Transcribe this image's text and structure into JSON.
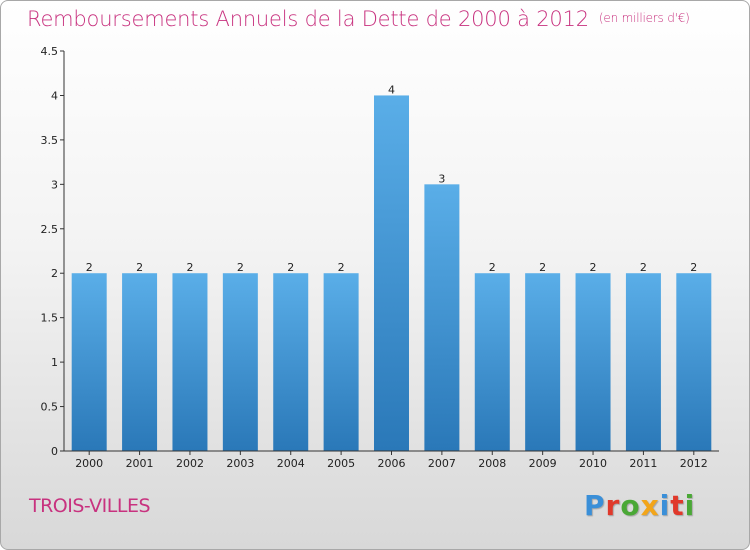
{
  "title": "Remboursements Annuels de la Dette de 2000 à 2012",
  "unit": "(en milliers d'€)",
  "commune": "TROIS-VILLES",
  "brand": {
    "text": "Proxiti",
    "letter_colors": [
      "#3a8fd8",
      "#e0392b",
      "#4aa836",
      "#f2a51a",
      "#3a8fd8",
      "#e0392b",
      "#4aa836"
    ]
  },
  "colors": {
    "bar_top": "#5aaee8",
    "bar_bottom": "#2a78b8",
    "axis": "#333333",
    "title": "#c8327f"
  },
  "chart_data": {
    "type": "bar",
    "title": "Remboursements Annuels de la Dette de 2000 à 2012",
    "subtitle": "(en milliers d'€)",
    "categories": [
      "2000",
      "2001",
      "2002",
      "2003",
      "2004",
      "2005",
      "2006",
      "2007",
      "2008",
      "2009",
      "2010",
      "2011",
      "2012"
    ],
    "values": [
      2,
      2,
      2,
      2,
      2,
      2,
      4,
      3,
      2,
      2,
      2,
      2,
      2
    ],
    "data_labels": [
      "2",
      "2",
      "2",
      "2",
      "2",
      "2",
      "4",
      "3",
      "2",
      "2",
      "2",
      "2",
      "2"
    ],
    "y_ticks": [
      "0",
      "0.5",
      "1",
      "1.5",
      "2",
      "2.5",
      "3",
      "3.5",
      "4",
      "4.5"
    ],
    "ylim": [
      0,
      4.5
    ],
    "xlabel": "",
    "ylabel": "",
    "grid": false,
    "legend": "none"
  }
}
